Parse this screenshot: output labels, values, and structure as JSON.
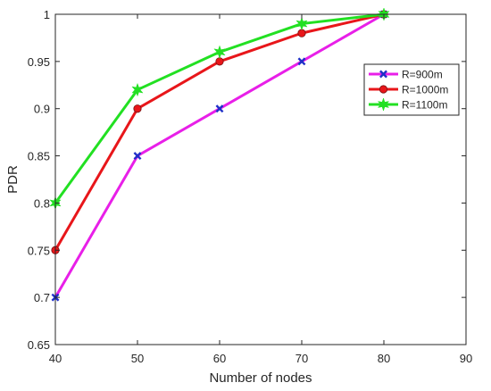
{
  "chart_data": {
    "type": "line",
    "title": "",
    "xlabel": "Number of nodes",
    "ylabel": "PDR",
    "x": [
      40,
      50,
      60,
      70,
      80
    ],
    "xlim": [
      40,
      90
    ],
    "ylim": [
      0.65,
      1
    ],
    "xticks": [
      "40",
      "50",
      "60",
      "70",
      "80",
      "90"
    ],
    "yticks": [
      "0.65",
      "0.7",
      "0.75",
      "0.8",
      "0.85",
      "0.9",
      "0.95",
      "1"
    ],
    "grid": false,
    "legend_position": "top-right",
    "series": [
      {
        "name": "R=900m",
        "values": [
          0.7,
          0.85,
          0.9,
          0.95,
          1.0
        ],
        "color": "#e81fe8",
        "marker": "x",
        "marker_color": "#1f2fc8"
      },
      {
        "name": "R=1000m",
        "values": [
          0.75,
          0.9,
          0.95,
          0.98,
          1.0
        ],
        "color": "#e8161a",
        "marker": "circle",
        "marker_color": "#e8161a"
      },
      {
        "name": "R=1100m",
        "values": [
          0.8,
          0.92,
          0.96,
          0.99,
          1.0
        ],
        "color": "#22e022",
        "marker": "star",
        "marker_color": "#22e022"
      }
    ]
  }
}
